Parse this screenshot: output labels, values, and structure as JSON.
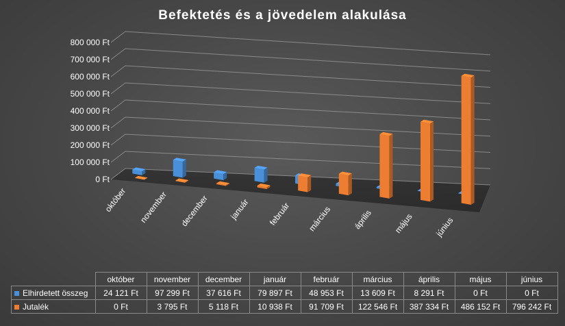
{
  "chart_data": {
    "type": "bar",
    "title": "Befektetés és a jövedelem alakulása",
    "categories": [
      "október",
      "november",
      "december",
      "január",
      "február",
      "március",
      "április",
      "május",
      "június"
    ],
    "series": [
      {
        "name": "Elhirdetett összeg",
        "color": "#4a90d9",
        "values": [
          24121,
          97299,
          37616,
          79897,
          48953,
          13609,
          8291,
          0,
          0
        ],
        "labels": [
          "24 121 Ft",
          "97 299 Ft",
          "37 616 Ft",
          "79 897 Ft",
          "48 953 Ft",
          "13 609 Ft",
          "8 291 Ft",
          "0 Ft",
          "0 Ft"
        ]
      },
      {
        "name": "Jutalék",
        "color": "#ed7d31",
        "values": [
          0,
          3795,
          5118,
          10938,
          91709,
          122546,
          387334,
          486152,
          796242
        ],
        "labels": [
          "0 Ft",
          "3 795 Ft",
          "5 118 Ft",
          "10 938 Ft",
          "91 709 Ft",
          "122 546 Ft",
          "387 334 Ft",
          "486 152 Ft",
          "796 242 Ft"
        ]
      }
    ],
    "y_ticks": [
      "0 Ft",
      "100 000 Ft",
      "200 000 Ft",
      "300 000 Ft",
      "400 000 Ft",
      "500 000 Ft",
      "600 000 Ft",
      "700 000 Ft",
      "800 000 Ft"
    ],
    "ylim": [
      0,
      800000
    ],
    "data_table": true,
    "style": "3d-column"
  }
}
